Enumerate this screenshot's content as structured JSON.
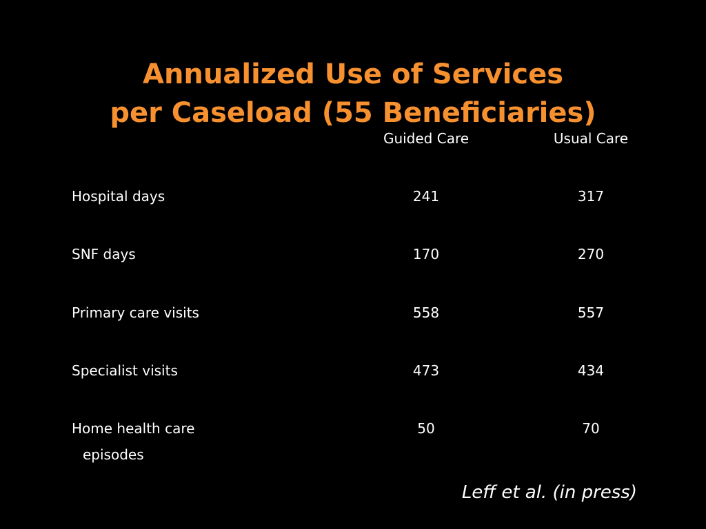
{
  "title": {
    "line1": "Annualized Use of Services",
    "line2": "per Caseload (55 Beneficiaries)"
  },
  "table": {
    "columns": [
      "Guided Care",
      "Usual Care"
    ],
    "rows": [
      {
        "label": "Hospital days",
        "label_cont": "",
        "guided": "241",
        "usual": "317"
      },
      {
        "label": "SNF days",
        "label_cont": "",
        "guided": "170",
        "usual": "270"
      },
      {
        "label": "Primary care visits",
        "label_cont": "",
        "guided": "558",
        "usual": "557"
      },
      {
        "label": "Specialist visits",
        "label_cont": "",
        "guided": "473",
        "usual": "434"
      },
      {
        "label": "Home health care",
        "label_cont": "episodes",
        "guided": "50",
        "usual": "70"
      }
    ]
  },
  "citation": "Leff et al. (in press)",
  "colors": {
    "background": "#000000",
    "title": "#f7902f",
    "text": "#ffffff"
  }
}
